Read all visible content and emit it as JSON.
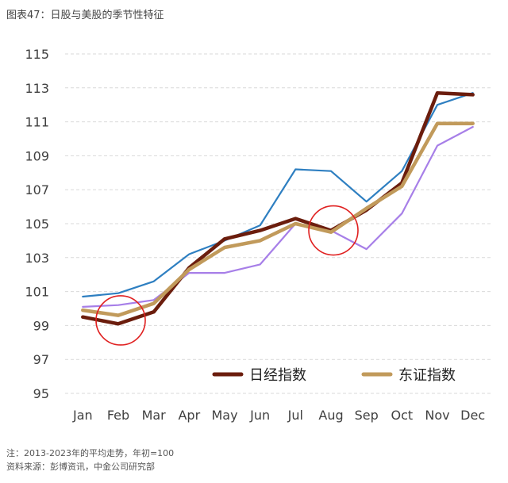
{
  "figure_title": "图表47：日股与美股的季节性特征",
  "notes": {
    "note": "注：2013-2023年的平均走势，年初=100",
    "source": "资料来源：彭博资讯，中金公司研究部"
  },
  "colors": {
    "nikkei": "#6b1d0d",
    "topix": "#c19a5b",
    "blue": "#2e7fc1",
    "purple": "#a77fe8",
    "circle": "#e02020",
    "grid": "#d9d9d9",
    "axis_text": "#404040"
  },
  "chart_data": {
    "type": "line",
    "categories": [
      "Jan",
      "Feb",
      "Mar",
      "Apr",
      "May",
      "Jun",
      "Jul",
      "Aug",
      "Sep",
      "Oct",
      "Nov",
      "Dec"
    ],
    "ylim": [
      95,
      115
    ],
    "yticks": [
      95,
      97,
      99,
      101,
      103,
      105,
      107,
      109,
      111,
      113,
      115
    ],
    "grid": "horizontal-dashed",
    "legend_position": "bottom-right",
    "series": [
      {
        "key": "blue",
        "values": [
          100.7,
          100.9,
          101.6,
          103.2,
          104.0,
          104.9,
          108.2,
          108.1,
          106.3,
          108.1,
          112.0,
          112.7
        ]
      },
      {
        "key": "purple",
        "values": [
          100.1,
          100.2,
          100.5,
          102.1,
          102.1,
          102.6,
          105.0,
          104.6,
          103.5,
          105.6,
          109.6,
          110.7
        ]
      },
      {
        "key": "nikkei",
        "name": "日经指数",
        "values": [
          99.5,
          99.1,
          99.8,
          102.4,
          104.1,
          104.6,
          105.3,
          104.6,
          105.8,
          107.4,
          112.7,
          112.6
        ]
      },
      {
        "key": "topix",
        "name": "东证指数",
        "values": [
          99.9,
          99.6,
          100.3,
          102.3,
          103.6,
          104.0,
          105.0,
          104.5,
          105.9,
          107.2,
          110.9,
          110.9
        ]
      }
    ],
    "annotations": [
      {
        "type": "circle",
        "x": "Feb",
        "y": 99.3
      },
      {
        "type": "circle",
        "x": "Aug",
        "y": 104.6
      }
    ]
  }
}
